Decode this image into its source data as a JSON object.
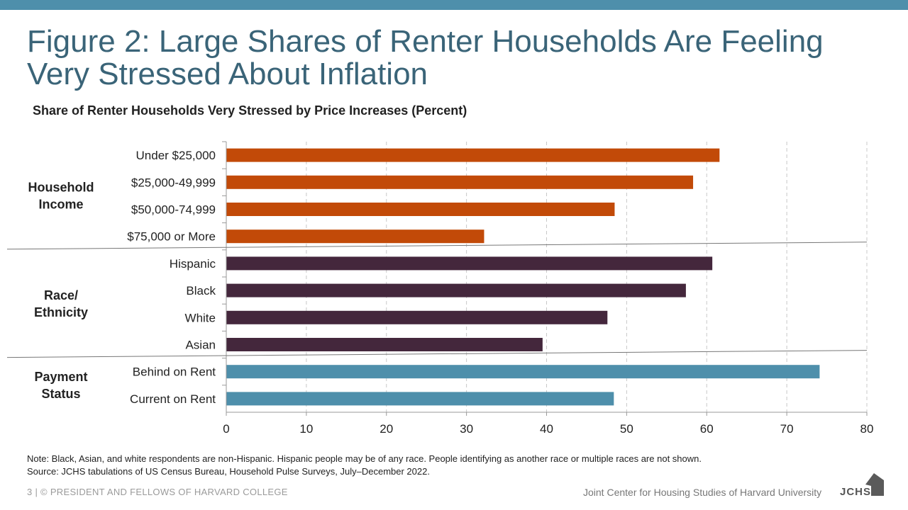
{
  "colors": {
    "top_bar": "#4e8fab",
    "income": "#c24a08",
    "race": "#44273c",
    "payment": "#4e8fab",
    "grid": "#c8c8c8"
  },
  "slide": {
    "title": "Figure 2: Large Shares of Renter Households Are Feeling Very Stressed About Inflation",
    "note_line1": "Note: Black, Asian, and white respondents are non-Hispanic. Hispanic people may be of any race. People identifying as another race or multiple races are not shown.",
    "note_line2": "Source: JCHS tabulations of US Census Bureau, Household Pulse Surveys, July–December 2022.",
    "footer_left": "3 | © PRESIDENT AND FELLOWS OF HARVARD COLLEGE",
    "footer_right": "Joint Center for Housing Studies of Harvard University",
    "logo_text": "JCHS"
  },
  "chart_data": {
    "type": "bar",
    "orientation": "horizontal",
    "title": "Share of Renter Households Very Stressed by Price Increases (Percent)",
    "xlim": [
      0,
      80
    ],
    "xticks": [
      0,
      10,
      20,
      30,
      40,
      50,
      60,
      70,
      80
    ],
    "grid": true,
    "groups": [
      {
        "name_lines": [
          "Household",
          "Income"
        ],
        "color": "#c24a08",
        "categories": [
          "Under $25,000",
          "$25,000-49,999",
          "$50,000-74,999",
          "$75,000 or More"
        ],
        "values": [
          61.6,
          58.3,
          48.5,
          32.2
        ]
      },
      {
        "name_lines": [
          "Race/",
          "Ethnicity"
        ],
        "color": "#44273c",
        "categories": [
          "Hispanic",
          "Black",
          "White",
          "Asian"
        ],
        "values": [
          60.7,
          57.4,
          47.6,
          39.5
        ]
      },
      {
        "name_lines": [
          "Payment",
          "Status"
        ],
        "color": "#4e8fab",
        "categories": [
          "Behind on Rent",
          "Current on Rent"
        ],
        "values": [
          74.1,
          48.4
        ]
      }
    ]
  }
}
